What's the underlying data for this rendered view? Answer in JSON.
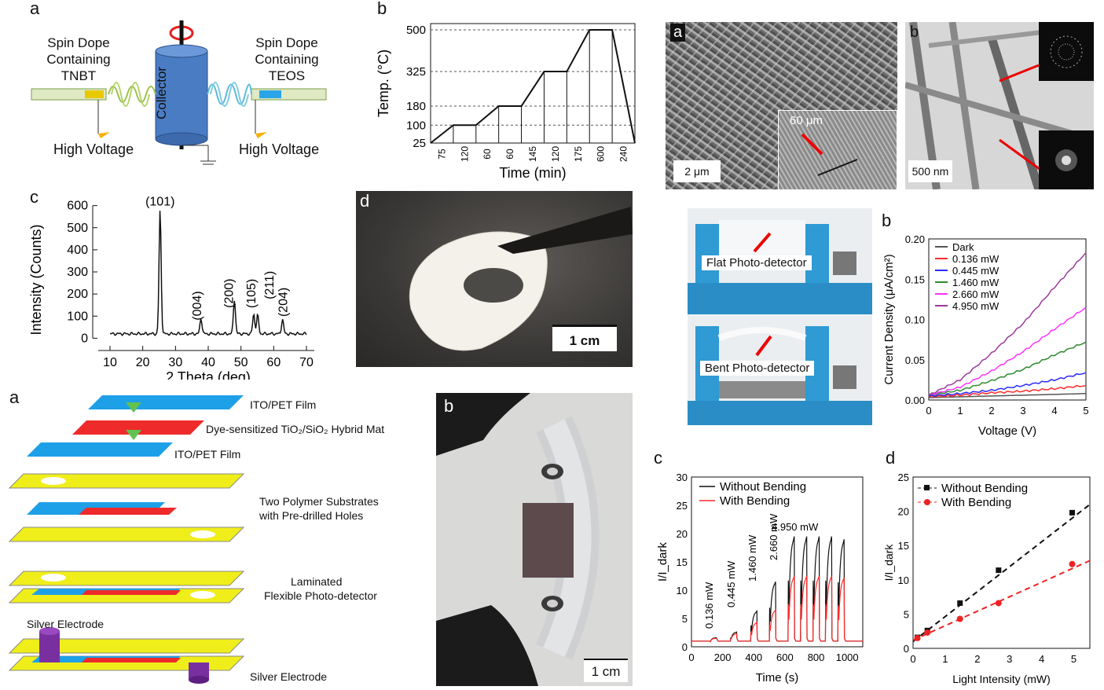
{
  "panels": {
    "a1": {
      "label": "a",
      "left_text": [
        "Spin Dope",
        "Containing",
        "TNBT"
      ],
      "right_text": [
        "Spin Dope",
        "Containing",
        "TEOS"
      ],
      "collector": "Collector",
      "hv_left": "High Voltage",
      "hv_right": "High Voltage"
    },
    "b1": {
      "label": "b"
    },
    "c1": {
      "label": "c"
    },
    "d1": {
      "label": "d",
      "scale": "1 cm"
    },
    "a2": {
      "label": "a",
      "layers": [
        "ITO/PET Film",
        "Dye-sensitized TiO₂/SiO₂ Hybrid Mat",
        "ITO/PET Film",
        "Two Polymer Substrates",
        "with Pre-drilled Holes",
        "Laminated",
        "Flexible Photo-detector",
        "Silver Electrode",
        "Silver Electrode"
      ]
    },
    "b2": {
      "label": "b",
      "scale": "1 cm"
    },
    "sem_a": {
      "label": "a",
      "scale": "2 μm",
      "inset": "60 μm"
    },
    "tem_b": {
      "label": "b",
      "scale": "500 nm"
    },
    "photo_a": {
      "label": "a",
      "flat": "Flat Photo-detector",
      "bent": "Bent Photo-detector"
    },
    "iv_b": {
      "label": "b"
    },
    "time_c": {
      "label": "c",
      "annotations": [
        "0.136 mW",
        "0.445 mW",
        "1.460 mW",
        "2.660 mW",
        "4.950 mW"
      ]
    },
    "lin_d": {
      "label": "d"
    }
  },
  "chart_data": [
    {
      "id": "temp_profile",
      "type": "line",
      "xlabel": "Time (min)",
      "ylabel": "Temp. (°C)",
      "x_ticks": [
        "75",
        "120",
        "60",
        "60",
        "145",
        "120",
        "175",
        "600",
        "240"
      ],
      "y_ticks": [
        "25",
        "100",
        "180",
        "325",
        "500"
      ],
      "steps": [
        {
          "label": "75",
          "y0": 25,
          "y1": 100
        },
        {
          "label": "120",
          "y0": 100,
          "y1": 100
        },
        {
          "label": "60",
          "y0": 100,
          "y1": 180
        },
        {
          "label": "60",
          "y0": 180,
          "y1": 180
        },
        {
          "label": "145",
          "y0": 180,
          "y1": 325
        },
        {
          "label": "120",
          "y0": 325,
          "y1": 325
        },
        {
          "label": "175",
          "y0": 325,
          "y1": 500
        },
        {
          "label": "600",
          "y0": 500,
          "y1": 500
        },
        {
          "label": "240",
          "y0": 500,
          "y1": 25
        }
      ]
    },
    {
      "id": "xrd",
      "type": "line",
      "xlabel": "2 Theta (deg)",
      "ylabel": "Intensity (Counts)",
      "xlim": [
        10,
        70
      ],
      "ylim": [
        0,
        600
      ],
      "x_ticks": [
        10,
        20,
        30,
        40,
        50,
        60,
        70
      ],
      "y_ticks": [
        0,
        100,
        200,
        300,
        400,
        500,
        600
      ],
      "peaks": [
        {
          "x": 25.3,
          "y": 580,
          "label": "(101)"
        },
        {
          "x": 37.8,
          "y": 90,
          "label": "(004)"
        },
        {
          "x": 48.0,
          "y": 175,
          "label": "(200)"
        },
        {
          "x": 53.9,
          "y": 110,
          "label": "(105)"
        },
        {
          "x": 55.1,
          "y": 105,
          "label": "(211)"
        },
        {
          "x": 62.7,
          "y": 85,
          "label": "(204)"
        }
      ],
      "baseline": 20
    },
    {
      "id": "iv",
      "type": "line",
      "xlabel": "Voltage (V)",
      "ylabel": "Current Density (μA/cm²)",
      "xlim": [
        0,
        5
      ],
      "ylim": [
        0,
        0.2
      ],
      "x_ticks": [
        0,
        1,
        2,
        3,
        4,
        5
      ],
      "y_ticks": [
        "0.00",
        "0.05",
        "0.10",
        "0.15",
        "0.20"
      ],
      "series": [
        {
          "name": "Dark",
          "color": "#555555",
          "values": [
            [
              0,
              0.003
            ],
            [
              1,
              0.004
            ],
            [
              2,
              0.005
            ],
            [
              3,
              0.006
            ],
            [
              4,
              0.007
            ],
            [
              5,
              0.008
            ]
          ]
        },
        {
          "name": "0.136 mW",
          "color": "#ff2a2a",
          "values": [
            [
              0,
              0.004
            ],
            [
              1,
              0.006
            ],
            [
              2,
              0.009
            ],
            [
              3,
              0.011
            ],
            [
              4,
              0.014
            ],
            [
              5,
              0.018
            ]
          ]
        },
        {
          "name": "0.445 mW",
          "color": "#2a2aff",
          "values": [
            [
              0,
              0.005
            ],
            [
              1,
              0.008
            ],
            [
              2,
              0.012
            ],
            [
              3,
              0.018
            ],
            [
              4,
              0.025
            ],
            [
              5,
              0.034
            ]
          ]
        },
        {
          "name": "1.460 mW",
          "color": "#2e8b2e",
          "values": [
            [
              0,
              0.006
            ],
            [
              1,
              0.012
            ],
            [
              2,
              0.024
            ],
            [
              3,
              0.038
            ],
            [
              4,
              0.056
            ],
            [
              5,
              0.072
            ]
          ]
        },
        {
          "name": "2.660 mW",
          "color": "#ff33ff",
          "values": [
            [
              0,
              0.006
            ],
            [
              1,
              0.016
            ],
            [
              2,
              0.036
            ],
            [
              3,
              0.06
            ],
            [
              4,
              0.088
            ],
            [
              5,
              0.115
            ]
          ]
        },
        {
          "name": "4.950 mW",
          "color": "#9a3a9a",
          "values": [
            [
              0,
              0.006
            ],
            [
              1,
              0.025
            ],
            [
              2,
              0.058
            ],
            [
              3,
              0.095
            ],
            [
              4,
              0.14
            ],
            [
              5,
              0.183
            ]
          ]
        }
      ]
    },
    {
      "id": "time",
      "type": "line",
      "xlabel": "Time (s)",
      "ylabel": "I/I_dark",
      "xlim": [
        0,
        1100
      ],
      "ylim": [
        0,
        30
      ],
      "x_ticks": [
        0,
        200,
        400,
        600,
        800,
        1000
      ],
      "y_ticks": [
        0,
        5,
        10,
        15,
        20,
        25,
        30
      ],
      "series": [
        {
          "name": "Without Bending",
          "color": "#111111",
          "pulses": [
            [
              120,
              1.6
            ],
            [
              250,
              2.6
            ],
            [
              380,
              6.3
            ],
            [
              500,
              11.5
            ],
            [
              620,
              19.5
            ],
            [
              700,
              19.5
            ],
            [
              780,
              19.5
            ],
            [
              860,
              19.5
            ],
            [
              940,
              19.0
            ]
          ]
        },
        {
          "name": "With Bending",
          "color": "#ff2a2a",
          "pulses": [
            [
              120,
              1.5
            ],
            [
              250,
              2.3
            ],
            [
              380,
              4.3
            ],
            [
              500,
              6.5
            ],
            [
              620,
              12.5
            ],
            [
              700,
              12.5
            ],
            [
              780,
              12.5
            ],
            [
              860,
              12.5
            ],
            [
              940,
              12.2
            ]
          ]
        }
      ]
    },
    {
      "id": "linear",
      "type": "scatter",
      "xlabel": "Light Intensity (mW)",
      "ylabel": "I/I_dark",
      "xlim": [
        0,
        5.5
      ],
      "ylim": [
        0,
        25
      ],
      "x_ticks": [
        0,
        1,
        2,
        3,
        4,
        5
      ],
      "y_ticks": [
        0,
        5,
        10,
        15,
        20,
        25
      ],
      "series": [
        {
          "name": "Without Bending",
          "color": "#111111",
          "points": [
            [
              0.136,
              1.6
            ],
            [
              0.445,
              2.6
            ],
            [
              1.46,
              6.6
            ],
            [
              2.66,
              11.4
            ],
            [
              4.95,
              19.8
            ]
          ],
          "fit": [
            [
              0,
              1.0
            ],
            [
              5.5,
              21.0
            ]
          ]
        },
        {
          "name": "With Bending",
          "color": "#ee2222",
          "points": [
            [
              0.136,
              1.5
            ],
            [
              0.445,
              2.3
            ],
            [
              1.46,
              4.3
            ],
            [
              2.66,
              6.6
            ],
            [
              4.95,
              12.3
            ]
          ],
          "fit": [
            [
              0,
              1.2
            ],
            [
              5.5,
              12.8
            ]
          ]
        }
      ]
    }
  ]
}
